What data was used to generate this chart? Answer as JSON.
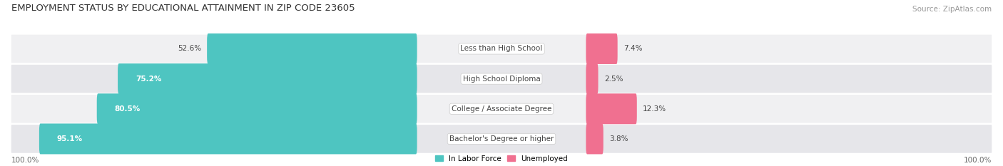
{
  "title": "EMPLOYMENT STATUS BY EDUCATIONAL ATTAINMENT IN ZIP CODE 23605",
  "source": "Source: ZipAtlas.com",
  "categories": [
    "Less than High School",
    "High School Diploma",
    "College / Associate Degree",
    "Bachelor's Degree or higher"
  ],
  "labor_force": [
    52.6,
    75.2,
    80.5,
    95.1
  ],
  "unemployed": [
    7.4,
    2.5,
    12.3,
    3.8
  ],
  "labor_force_color": "#4EC5C1",
  "unemployed_color": "#F07090",
  "row_bg_even": "#F0F0F2",
  "row_bg_odd": "#E6E6EA",
  "axis_label_left": "100.0%",
  "axis_label_right": "100.0%",
  "legend_labor": "In Labor Force",
  "legend_unemployed": "Unemployed",
  "title_fontsize": 9.5,
  "label_fontsize": 7.5,
  "bar_label_fontsize": 7.5,
  "category_fontsize": 7.5,
  "source_fontsize": 7.5
}
